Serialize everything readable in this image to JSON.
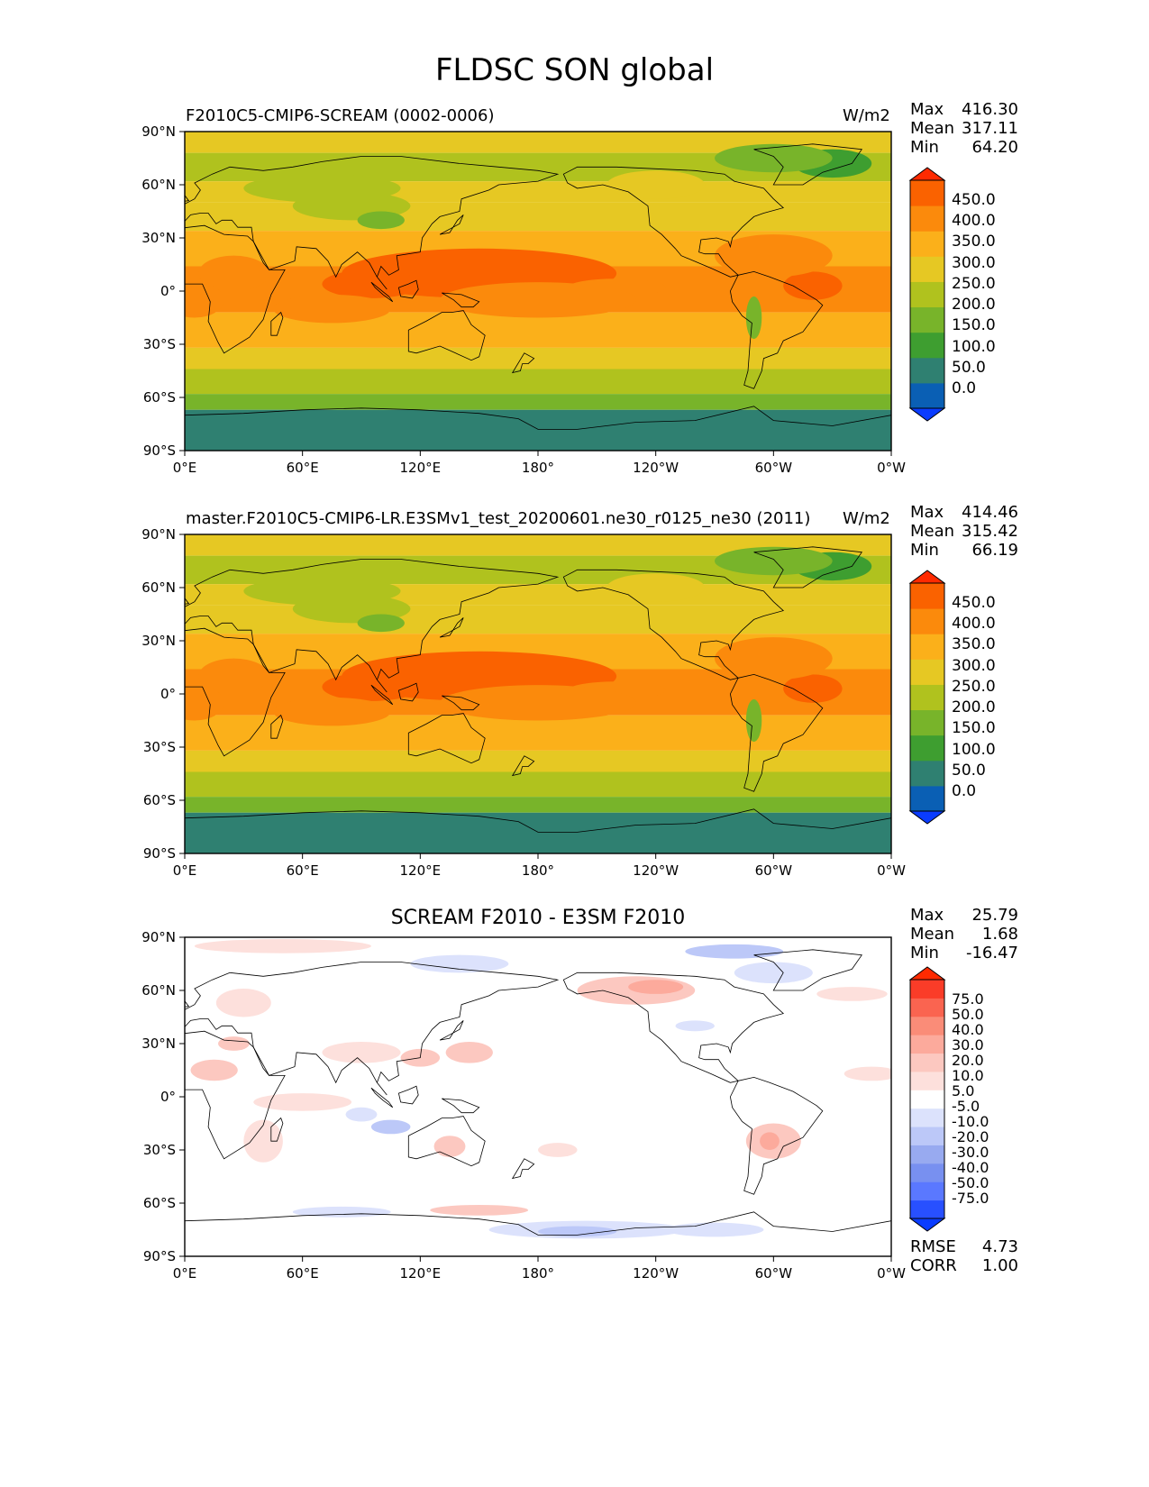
{
  "figure": {
    "title": "FLDSC SON global"
  },
  "axes": {
    "lat_ticks": [
      "90°N",
      "60°N",
      "30°N",
      "0°",
      "30°S",
      "60°S",
      "90°S"
    ],
    "lon_ticks": [
      "0°E",
      "60°E",
      "120°E",
      "180°",
      "120°W",
      "60°W",
      "0°W"
    ]
  },
  "panels": [
    {
      "left_title": "F2010C5-CMIP6-SCREAM (0002-0006)",
      "right_title": "W/m2",
      "stats": {
        "max_label": "Max",
        "max": "416.30",
        "mean_label": "Mean",
        "mean": "317.11",
        "min_label": "Min",
        "min": "64.20"
      },
      "colorbar_labels": [
        "450.0",
        "400.0",
        "350.0",
        "300.0",
        "250.0",
        "200.0",
        "150.0",
        "100.0",
        "50.0",
        "0.0"
      ]
    },
    {
      "left_title": "master.F2010C5-CMIP6-LR.E3SMv1_test_20200601.ne30_r0125_ne30 (2011)",
      "right_title": "W/m2",
      "stats": {
        "max_label": "Max",
        "max": "414.46",
        "mean_label": "Mean",
        "mean": "315.42",
        "min_label": "Min",
        "min": "66.19"
      },
      "colorbar_labels": [
        "450.0",
        "400.0",
        "350.0",
        "300.0",
        "250.0",
        "200.0",
        "150.0",
        "100.0",
        "50.0",
        "0.0"
      ]
    },
    {
      "center_title": "SCREAM F2010 - E3SM F2010",
      "stats": {
        "max_label": "Max",
        "max": "25.79",
        "mean_label": "Mean",
        "mean": "1.68",
        "min_label": "Min",
        "min": "-16.47"
      },
      "colorbar_labels": [
        "75.0",
        "50.0",
        "40.0",
        "30.0",
        "20.0",
        "10.0",
        "5.0",
        "-5.0",
        "-10.0",
        "-20.0",
        "-30.0",
        "-40.0",
        "-50.0",
        "-75.0"
      ],
      "metrics": {
        "rmse_label": "RMSE",
        "rmse": "4.73",
        "corr_label": "CORR",
        "corr": "1.00"
      }
    }
  ],
  "colors": {
    "field_scale": [
      "#0a3cff",
      "#0a5fb4",
      "#2f8071",
      "#3e9e30",
      "#78b42a",
      "#b0c21e",
      "#e6c823",
      "#fbb01a",
      "#fb8a0c",
      "#fa6200",
      "#ff2a00"
    ],
    "diff_scale": [
      "#0a3cff",
      "#2850ff",
      "#5a78ff",
      "#7890f0",
      "#98aaf0",
      "#bcc8f8",
      "#dce2fc",
      "#ffffff",
      "#fde0dc",
      "#fcc8c0",
      "#fcaa9c",
      "#fa8c78",
      "#fa6450",
      "#fa3c28",
      "#ff2a00"
    ]
  }
}
